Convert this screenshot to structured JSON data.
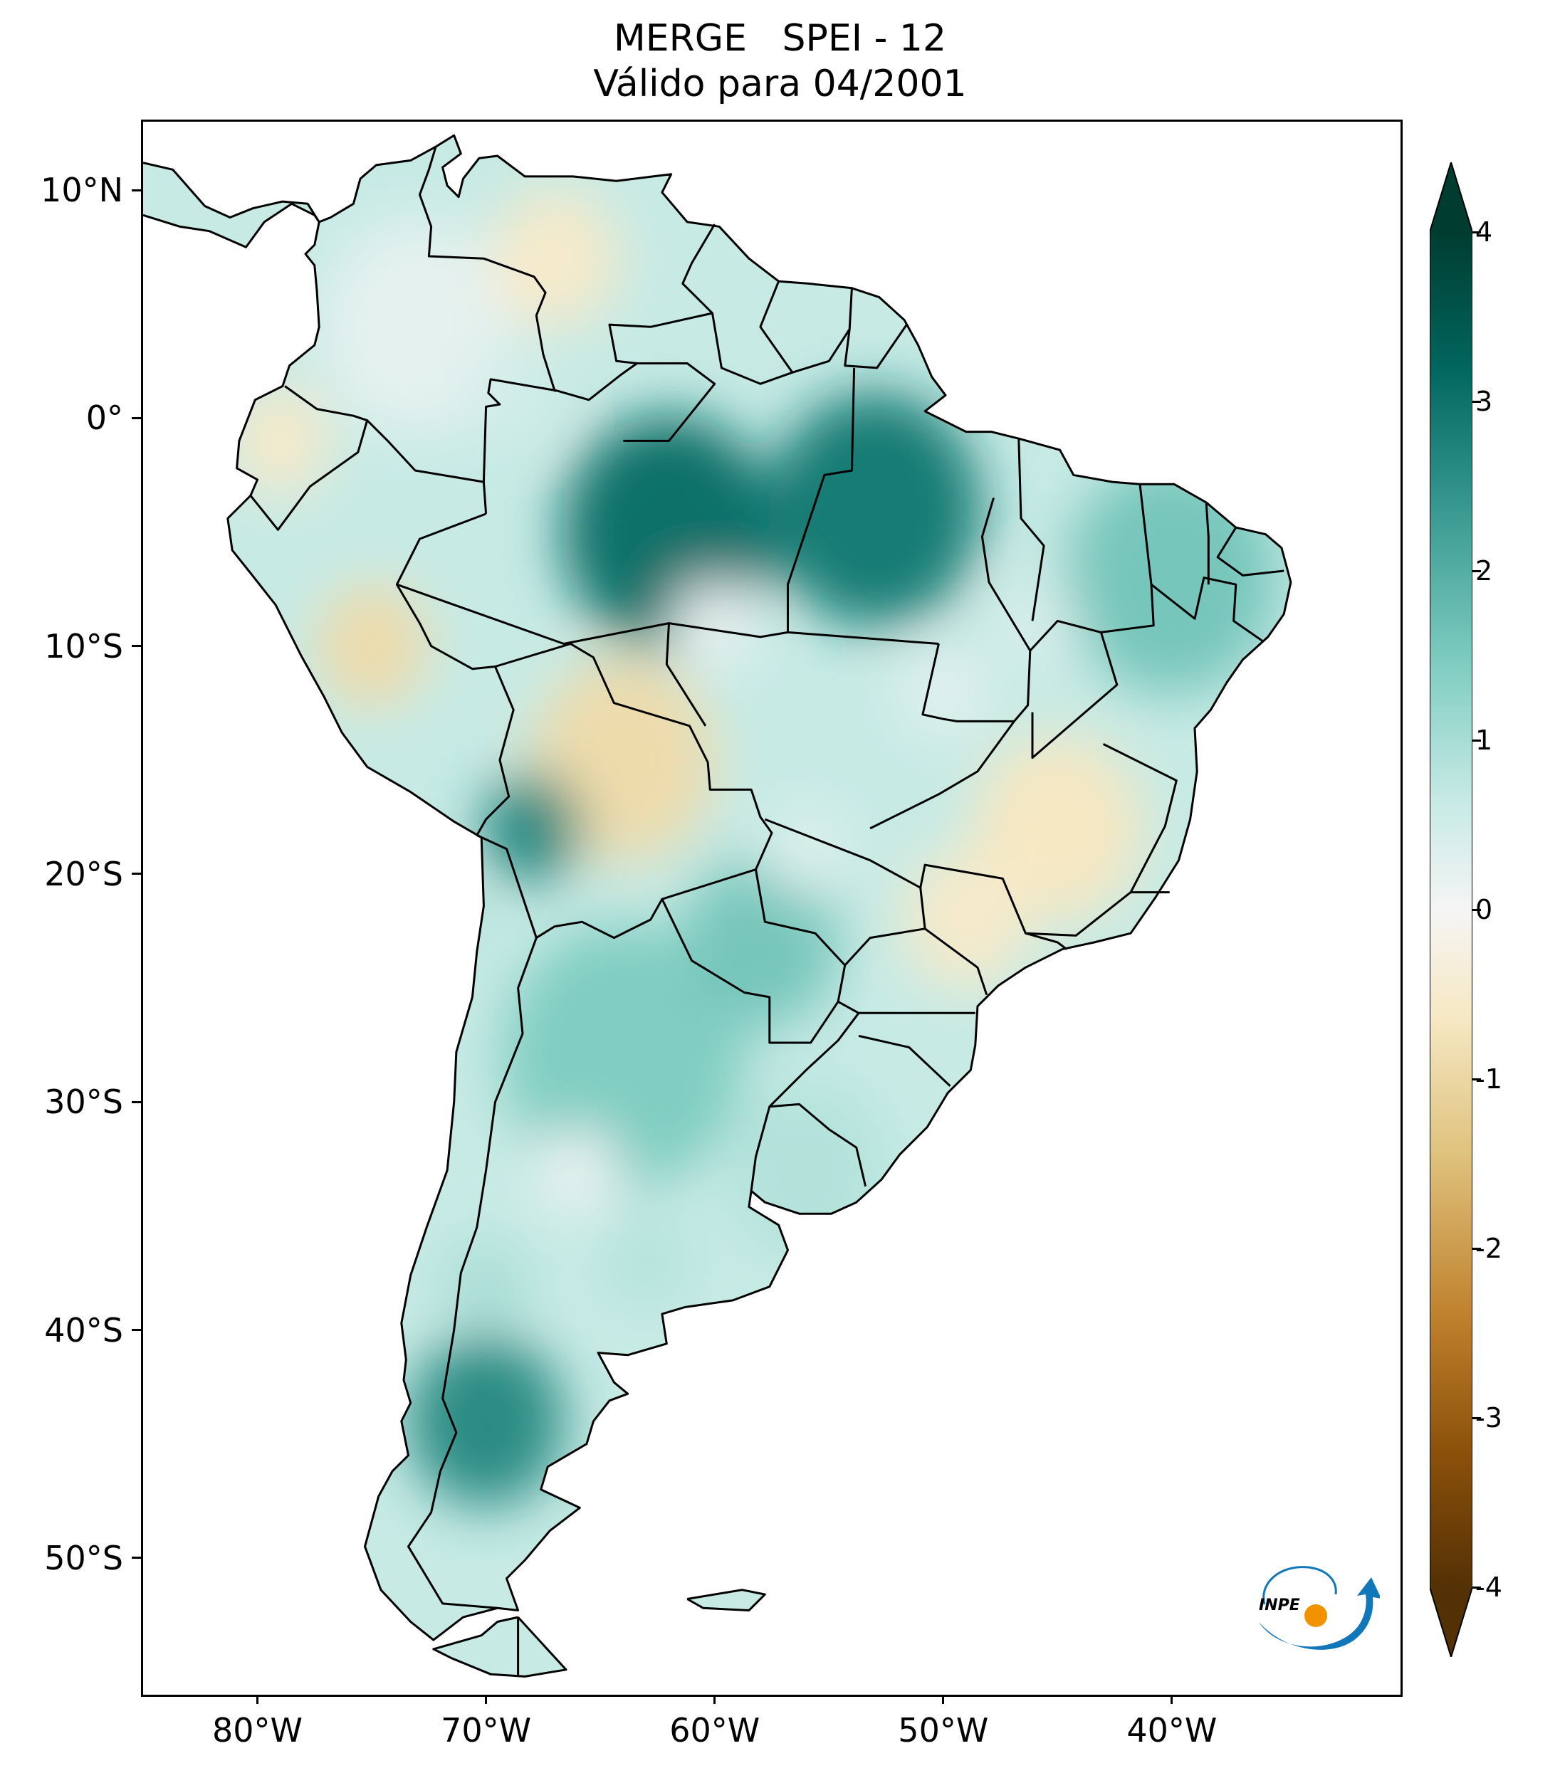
{
  "title": {
    "line1": "MERGE   SPEI - 12",
    "line2": "Válido para 04/2001"
  },
  "axes": {
    "lat_labels": [
      "10°N",
      "0°",
      "10°S",
      "20°S",
      "30°S",
      "40°S",
      "50°S"
    ],
    "lat_values": [
      10,
      0,
      -10,
      -20,
      -30,
      -40,
      -50
    ],
    "lon_labels": [
      "80°W",
      "70°W",
      "60°W",
      "50°W",
      "40°W"
    ],
    "lon_values": [
      -80,
      -70,
      -60,
      -50,
      -40
    ],
    "lon_range": [
      -85,
      -30
    ],
    "lat_range": [
      -56,
      13
    ]
  },
  "colorbar": {
    "tick_labels": [
      "4",
      "3",
      "2",
      "1",
      "0",
      "-1",
      "-2",
      "-3",
      "-4"
    ],
    "tick_values": [
      4,
      3,
      2,
      1,
      0,
      -1,
      -2,
      -3,
      -4
    ],
    "range": [
      -4,
      4
    ],
    "extend": "both",
    "colors": {
      "wet_dark": "#003c30",
      "wet": "#01665e",
      "wet_mid": "#35978f",
      "wet_light": "#80cdc1",
      "wet_pale": "#c7eae5",
      "neutral": "#f5f5f5",
      "dry_pale": "#f6e8c3",
      "dry_light": "#dfc27d",
      "dry_mid": "#bf812d",
      "dry": "#8c510a",
      "dry_dark": "#543005"
    }
  },
  "logo": {
    "text": "INPE",
    "colors": {
      "arc": "#1177bb",
      "dot": "#f39200"
    }
  },
  "map_regions": {
    "amazon_wet": {
      "lon": -62,
      "lat": -5,
      "spei": 3.0
    },
    "para_wet": {
      "lon": -53,
      "lat": -4,
      "spei": 2.8
    },
    "colombia_mixed": {
      "lon": -73,
      "lat": 4,
      "spei": 0.3
    },
    "venezuela_dry": {
      "lon": -67,
      "lat": 7,
      "spei": -0.6
    },
    "ecuador_dry": {
      "lon": -79,
      "lat": -1,
      "spei": -0.6
    },
    "peru_dry": {
      "lon": -75,
      "lat": -10,
      "spei": -0.9
    },
    "bolivia_dry": {
      "lon": -64,
      "lat": -15,
      "spei": -0.9
    },
    "minas_dry": {
      "lon": -45,
      "lat": -18,
      "spei": -0.7
    },
    "sao_paulo_dry": {
      "lon": -49,
      "lat": -22,
      "spei": -0.6
    },
    "bolivia_andes_wet": {
      "lon": -68,
      "lat": -18,
      "spei": 2.6
    },
    "argentina_north_wet": {
      "lon": -64,
      "lat": -28,
      "spei": 1.5
    },
    "patagonia_wet": {
      "lon": -70,
      "lat": -44,
      "spei": 2.5
    },
    "nordeste_wet": {
      "lon": -40,
      "lat": -7,
      "spei": 1.6
    },
    "uruguay_wet": {
      "lon": -56,
      "lat": -33,
      "spei": 1.0
    },
    "paraguay_wet": {
      "lon": -58,
      "lat": -23,
      "spei": 1.6
    }
  }
}
